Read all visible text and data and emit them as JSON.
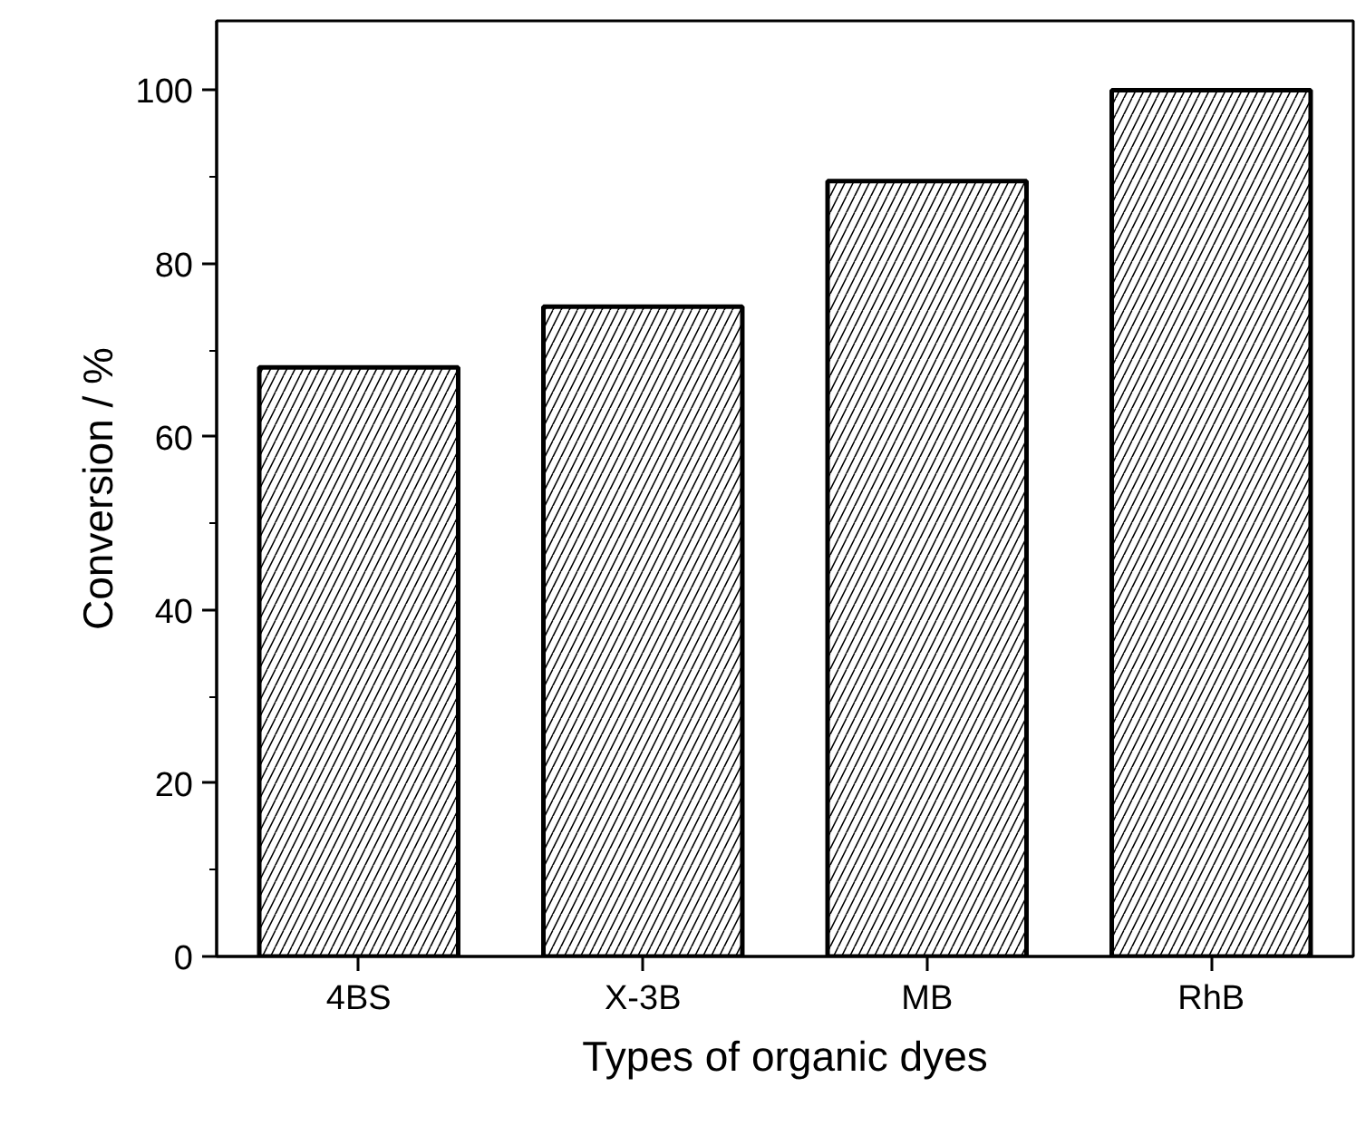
{
  "chart_data": {
    "type": "bar",
    "xlabel": "Types of organic dyes",
    "ylabel": "Conversion / %",
    "categories": [
      "4BS",
      "X-3B",
      "MB",
      "RhB"
    ],
    "values": [
      68,
      75,
      89.5,
      100
    ],
    "color": "#ffffff",
    "ylim": [
      0,
      108
    ],
    "yticks": [
      0,
      20,
      40,
      60,
      80,
      100
    ],
    "grid": false
  }
}
